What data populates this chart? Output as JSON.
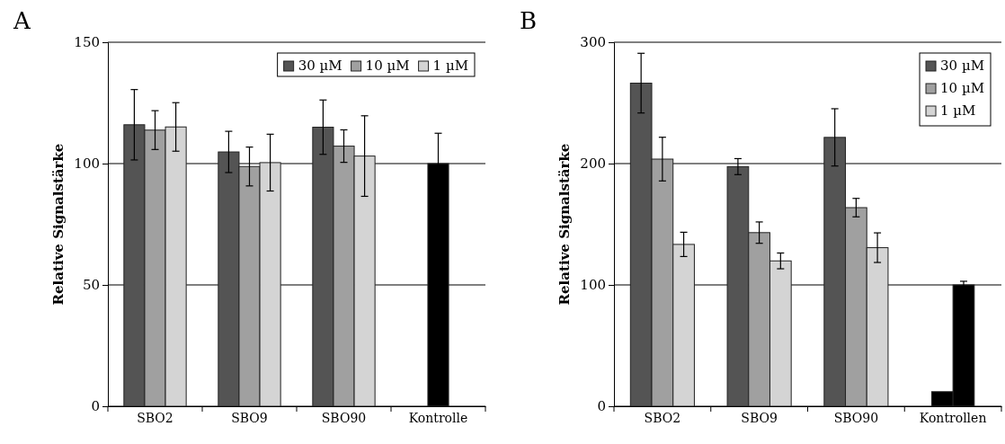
{
  "chart_data": [
    {
      "type": "bar",
      "title": "A",
      "ylabel": "Relative Signalstärke",
      "categories": [
        "SBO2",
        "SBO9",
        "SBO90",
        "Kontrolle"
      ],
      "ylim": [
        0,
        150
      ],
      "yticks": [
        0,
        50,
        100,
        150
      ],
      "grid": "y",
      "legend": "top right",
      "series": [
        {
          "name": "30 µM",
          "color": "#545454",
          "values": [
            116,
            104.8,
            115,
            null
          ],
          "errors": [
            14.5,
            8.5,
            11.2,
            null
          ]
        },
        {
          "name": "10 µM",
          "color": "#a0a0a0",
          "values": [
            113.8,
            98.8,
            107.2,
            null
          ],
          "errors": [
            8,
            8,
            6.7,
            null
          ]
        },
        {
          "name": "1 µM",
          "color": "#d4d4d4",
          "values": [
            115.1,
            100.4,
            103.1,
            null
          ],
          "errors": [
            10,
            11.7,
            16.6,
            null
          ]
        },
        {
          "color": "#000000",
          "values": [
            null,
            null,
            null,
            100
          ],
          "errors": [
            null,
            null,
            null,
            12.5
          ]
        }
      ]
    },
    {
      "type": "bar",
      "title": "B",
      "ylabel": "Relative Signalstärke",
      "categories": [
        "SBO2",
        "SBO9",
        "SBO90",
        "Kontrollen"
      ],
      "ylim": [
        0,
        300
      ],
      "yticks": [
        0,
        100,
        200,
        300
      ],
      "grid": "y",
      "legend": "top right",
      "series": [
        {
          "name": "30 µM",
          "color": "#545454",
          "values": [
            266.3,
            197.5,
            221.6,
            null
          ],
          "errors": [
            24.6,
            6.6,
            23.6,
            null
          ]
        },
        {
          "name": "10 µM",
          "color": "#a0a0a0",
          "values": [
            203.7,
            143.1,
            163.7,
            null
          ],
          "errors": [
            18,
            8.8,
            7.6,
            null
          ]
        },
        {
          "name": "1 µM",
          "color": "#d4d4d4",
          "values": [
            133.4,
            119.8,
            130.7,
            null
          ],
          "errors": [
            10,
            6.5,
            12.2,
            null
          ]
        },
        {
          "color": "#000000",
          "values": [
            null,
            null,
            null,
            12
          ],
          "errors": [
            null,
            null,
            null,
            null
          ]
        },
        {
          "color": "#000000",
          "values": [
            null,
            null,
            null,
            100
          ],
          "errors": [
            null,
            null,
            null,
            3
          ]
        }
      ]
    }
  ]
}
